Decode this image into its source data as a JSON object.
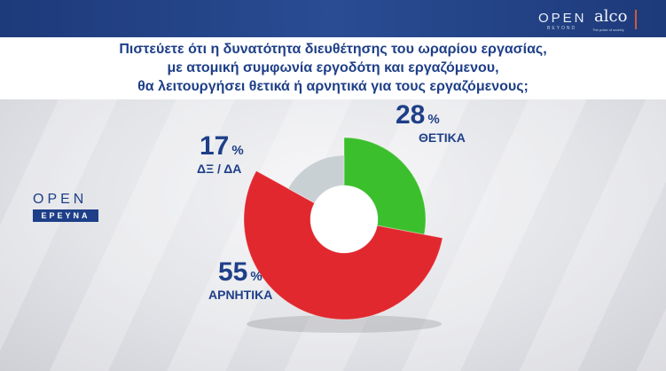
{
  "header": {
    "brand_open": "OPEN",
    "brand_open_sub": "BEYOND",
    "brand_alco": "alco",
    "brand_alco_sub": "The pulse of society"
  },
  "question": {
    "line1": "Πιστεύετε ότι η δυνατότητα διευθέτησης του ωραρίου εργασίας,",
    "line2": "με ατομική συμφωνία εργοδότη και εργαζόμενου,",
    "line3": "θα λειτουργήσει θετικά ή αρνητικά για τους εργαζόμενους;"
  },
  "logo": {
    "open": "OPEN",
    "tag": "ΕΡΕΥΝΑ"
  },
  "chart_data": {
    "type": "pie",
    "categories": [
      "ΘΕΤΙΚΑ",
      "ΑΡΝΗΤΙΚΑ",
      "ΔΞ / ΔΑ"
    ],
    "values": [
      28,
      55,
      17
    ],
    "unit": "%",
    "colors": [
      "#3bbf2c",
      "#e0282e",
      "#c9d0d4"
    ],
    "style": "donut"
  }
}
